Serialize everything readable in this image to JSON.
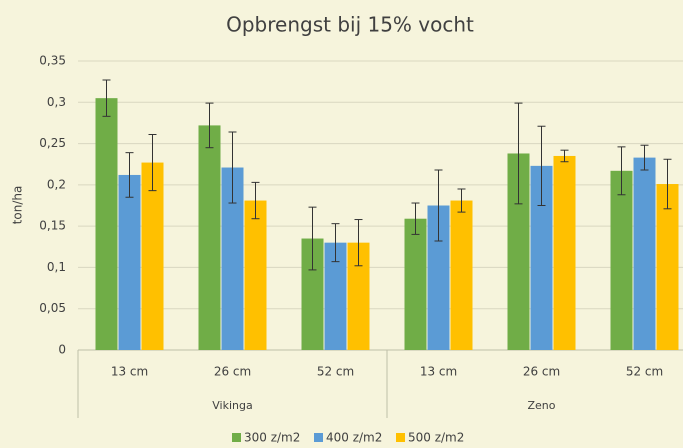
{
  "chart_data": {
    "type": "bar",
    "title": "Opbrengst bij 15% vocht",
    "y_label": "ton/ha",
    "categories": [
      "13 cm",
      "26 cm",
      "52 cm",
      "13 cm",
      "26 cm",
      "52 cm"
    ],
    "category_groups": [
      "Vikinga",
      "Zeno"
    ],
    "series": [
      {
        "name": "300 z/m2",
        "color": "#70ad47",
        "values": [
          0.305,
          0.272,
          0.135,
          0.159,
          0.238,
          0.217
        ],
        "errors": [
          0.022,
          0.027,
          0.038,
          0.019,
          0.061,
          0.029
        ]
      },
      {
        "name": "400 z/m2",
        "color": "#5b9bd5",
        "values": [
          0.212,
          0.221,
          0.13,
          0.175,
          0.223,
          0.233
        ],
        "errors": [
          0.027,
          0.043,
          0.023,
          0.043,
          0.048,
          0.015
        ]
      },
      {
        "name": "500 z/m2",
        "color": "#ffc000",
        "values": [
          0.227,
          0.181,
          0.13,
          0.181,
          0.235,
          0.201
        ],
        "errors": [
          0.034,
          0.022,
          0.028,
          0.014,
          0.007,
          0.03
        ]
      }
    ],
    "ylim": [
      0,
      0.35
    ],
    "yticks": [
      0,
      {
        "value": 0.05,
        "label": "0,05"
      },
      {
        "value": 0.1,
        "label": "0,1"
      },
      {
        "value": 0.15,
        "label": "0,15"
      },
      {
        "value": 0.2,
        "label": "0,2"
      },
      {
        "value": 0.25,
        "label": "0,25"
      },
      {
        "value": 0.3,
        "label": "0,3"
      },
      {
        "value": 0.35,
        "label": "0,35"
      }
    ],
    "grid": true
  }
}
